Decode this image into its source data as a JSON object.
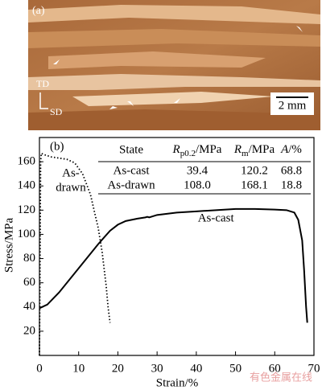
{
  "micrograph": {
    "label": "(a)",
    "td": "TD",
    "sd": "SD",
    "scale": "2 mm"
  },
  "chart_data": {
    "type": "line",
    "label": "(b)",
    "xlabel": "Strain/%",
    "ylabel": "Stress/MPa",
    "xlim": [
      0,
      70
    ],
    "xticks": [
      0,
      10,
      20,
      30,
      40,
      50,
      60,
      70
    ],
    "ylim": [
      0,
      180
    ],
    "yticks": [
      20,
      40,
      60,
      80,
      100,
      120,
      140,
      160
    ],
    "series": [
      {
        "name": "As-cast",
        "color": "#000000",
        "style": "solid",
        "x": [
          0,
          2,
          5,
          10,
          15,
          18,
          20,
          22,
          25,
          27,
          27.5,
          28,
          30,
          35,
          40,
          45,
          50,
          55,
          60,
          63,
          65,
          66,
          67,
          67.5,
          68,
          68.3
        ],
        "values": [
          39,
          42,
          52,
          72,
          92,
          103,
          108,
          111,
          113,
          114,
          114.5,
          114,
          116,
          118,
          119,
          120,
          121,
          121,
          120.5,
          120,
          118,
          112,
          95,
          70,
          40,
          27
        ]
      },
      {
        "name": "As-drawn",
        "color": "#000000",
        "style": "dotted",
        "x": [
          0,
          0.3,
          0.5,
          1,
          2,
          3,
          5,
          7,
          9,
          11,
          13,
          15,
          16,
          17,
          17.5,
          18
        ],
        "values": [
          0,
          160,
          167,
          166,
          165,
          164,
          163,
          162,
          159,
          150,
          133,
          105,
          85,
          58,
          40,
          27
        ]
      }
    ],
    "annotations": [
      {
        "lines": [
          "As-cast"
        ],
        "x": 45,
        "y": 113
      },
      {
        "lines": [
          "As-",
          "drawn"
        ],
        "x": 8,
        "y": 150
      }
    ],
    "table": {
      "columns": [
        {
          "text": "State"
        },
        {
          "symbol": "R",
          "sub": "p0.2",
          "unit": "/MPa"
        },
        {
          "symbol": "R",
          "sub": "m",
          "unit": "/MPa"
        },
        {
          "symbol": "A",
          "sub": "",
          "unit": "/%"
        }
      ],
      "rows": [
        [
          "As-cast",
          "39.4",
          "120.2",
          "68.8"
        ],
        [
          "As-drawn",
          "108.0",
          "168.1",
          "18.8"
        ]
      ]
    },
    "watermark": "有色金属在线"
  }
}
